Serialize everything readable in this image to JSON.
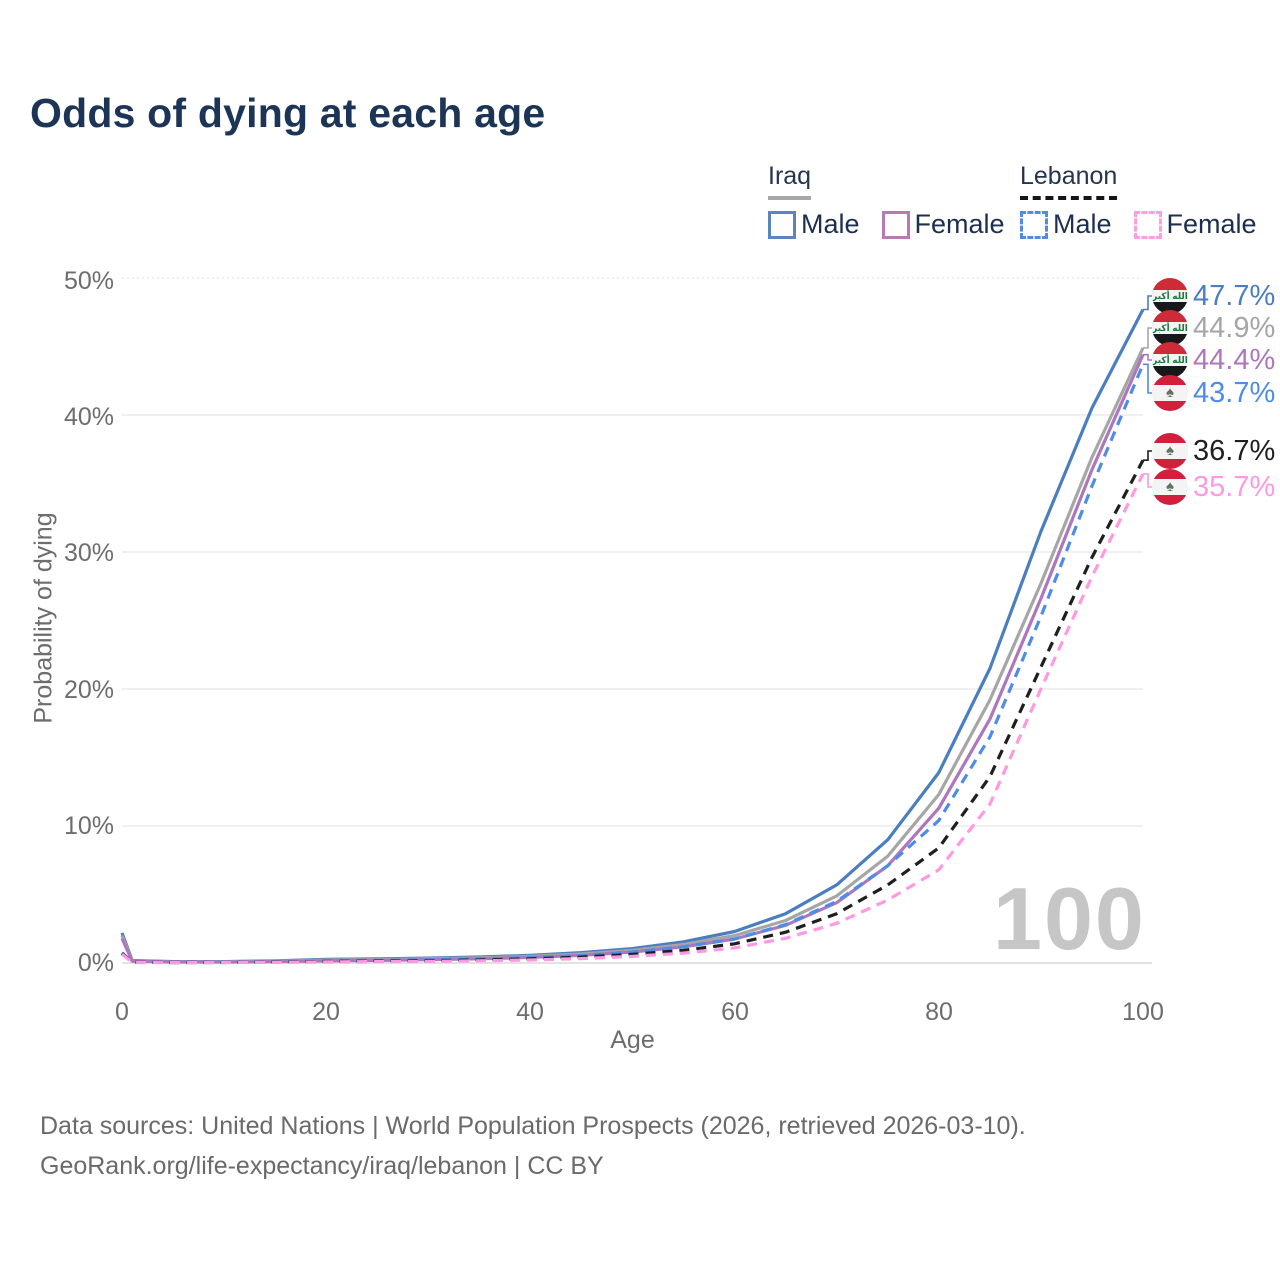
{
  "title": "Odds of dying at each age",
  "legend": {
    "groups": [
      {
        "label": "Iraq",
        "items": [
          {
            "label": "Male"
          },
          {
            "label": "Female"
          }
        ]
      },
      {
        "label": "Lebanon",
        "items": [
          {
            "label": "Male"
          },
          {
            "label": "Female"
          }
        ]
      }
    ]
  },
  "axes": {
    "y": {
      "title": "Probability of dying",
      "ticks": [
        "0%",
        "10%",
        "20%",
        "30%",
        "40%",
        "50%"
      ]
    },
    "x": {
      "title": "Age",
      "ticks": [
        "0",
        "20",
        "40",
        "60",
        "80",
        "100"
      ]
    }
  },
  "watermark": "100",
  "end_labels": [
    {
      "value": "47.7%",
      "country": "iraq",
      "color": "#4a7ec0"
    },
    {
      "value": "44.9%",
      "country": "iraq",
      "color": "#a6a6a6"
    },
    {
      "value": "44.4%",
      "country": "iraq",
      "color": "#ae77bd"
    },
    {
      "value": "43.7%",
      "country": "lebanon",
      "color": "#4f8ce8"
    },
    {
      "value": "36.7%",
      "country": "lebanon",
      "color": "#1f1f1f"
    },
    {
      "value": "35.7%",
      "country": "lebanon",
      "color": "#ff99e3"
    }
  ],
  "icons": {
    "iraq_flag_script": "الله أكبر",
    "lebanon_cedar": "♠"
  },
  "footer": {
    "line1": "Data sources: United Nations | World Population Prospects (2026, retrieved 2026-03-10).",
    "line2": "GeoRank.org/life-expectancy/iraq/lebanon | CC BY"
  },
  "chart_data": {
    "type": "line",
    "title": "Odds of dying at each age",
    "xlabel": "Age",
    "ylabel": "Probability of dying",
    "xlim": [
      0,
      100
    ],
    "ylim": [
      0,
      50
    ],
    "grid": "horizontal",
    "legend_position": "top-right",
    "x": [
      0,
      1,
      5,
      10,
      15,
      20,
      25,
      30,
      35,
      40,
      45,
      50,
      55,
      60,
      65,
      70,
      75,
      80,
      85,
      90,
      95,
      100
    ],
    "series": [
      {
        "name": "Iraq Male",
        "style": "solid",
        "color": "#4a7ec0",
        "end_value": 47.7,
        "values": [
          2.2,
          0.18,
          0.1,
          0.1,
          0.16,
          0.26,
          0.3,
          0.36,
          0.44,
          0.56,
          0.76,
          1.05,
          1.55,
          2.3,
          3.6,
          5.7,
          9.0,
          13.9,
          21.5,
          31.5,
          40.5,
          47.7
        ]
      },
      {
        "name": "Iraq (both sexes)",
        "style": "solid",
        "color": "#a6a6a6",
        "end_value": 44.9,
        "values": [
          2.0,
          0.16,
          0.09,
          0.09,
          0.13,
          0.21,
          0.25,
          0.3,
          0.37,
          0.48,
          0.66,
          0.92,
          1.35,
          2.0,
          3.1,
          4.9,
          7.8,
          12.3,
          19.2,
          27.7,
          36.9,
          44.9
        ]
      },
      {
        "name": "Iraq Female",
        "style": "solid",
        "color": "#ae77bd",
        "end_value": 44.4,
        "values": [
          1.8,
          0.14,
          0.08,
          0.07,
          0.1,
          0.15,
          0.19,
          0.24,
          0.31,
          0.41,
          0.56,
          0.8,
          1.18,
          1.75,
          2.75,
          4.4,
          7.1,
          11.3,
          17.8,
          26.6,
          36.0,
          44.4
        ]
      },
      {
        "name": "Lebanon Male",
        "style": "dashed",
        "color": "#4f8ce8",
        "end_value": 43.7,
        "values": [
          0.75,
          0.06,
          0.04,
          0.05,
          0.09,
          0.15,
          0.19,
          0.23,
          0.29,
          0.39,
          0.55,
          0.8,
          1.18,
          1.75,
          2.8,
          4.5,
          7.1,
          10.4,
          16.5,
          25.3,
          34.8,
          43.7
        ]
      },
      {
        "name": "Lebanon (both sexes)",
        "style": "dashed",
        "color": "#1f1f1f",
        "end_value": 36.7,
        "values": [
          0.7,
          0.05,
          0.035,
          0.04,
          0.07,
          0.11,
          0.14,
          0.17,
          0.22,
          0.3,
          0.43,
          0.63,
          0.93,
          1.4,
          2.25,
          3.6,
          5.7,
          8.4,
          13.6,
          21.6,
          29.6,
          36.7
        ]
      },
      {
        "name": "Lebanon Female",
        "style": "dashed",
        "color": "#ff99e3",
        "end_value": 35.7,
        "values": [
          0.65,
          0.045,
          0.03,
          0.035,
          0.05,
          0.08,
          0.1,
          0.12,
          0.16,
          0.22,
          0.32,
          0.48,
          0.72,
          1.1,
          1.8,
          2.9,
          4.6,
          6.8,
          11.6,
          20.0,
          28.2,
          35.7
        ]
      }
    ]
  }
}
